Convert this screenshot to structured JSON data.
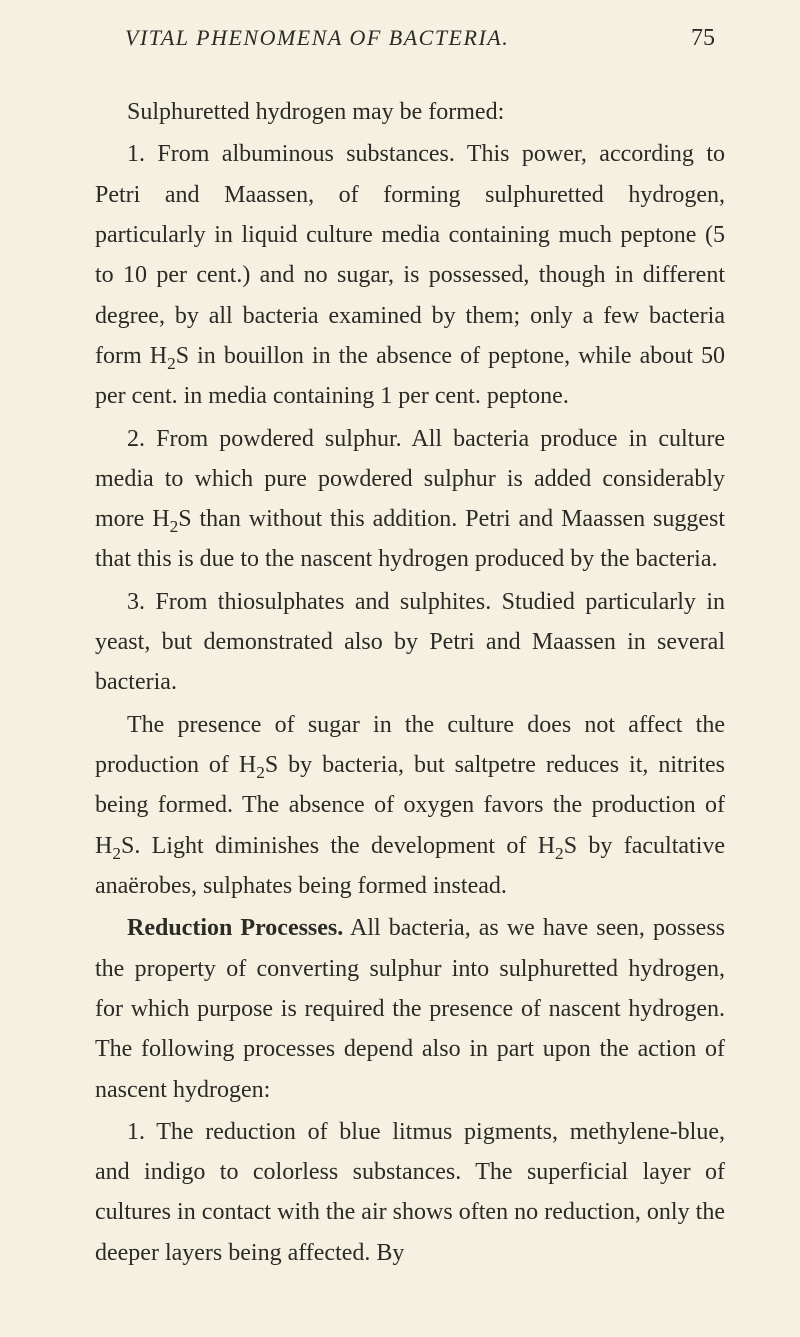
{
  "header": {
    "running_title": "VITAL PHENOMENA OF BACTERIA.",
    "page_number": "75"
  },
  "text": {
    "p1": "Sulphuretted hydrogen may be formed:",
    "p2_a": "1. From albuminous substances. This power, according to Petri and Maassen, of forming sulphuretted hydrogen, particularly in liquid culture media containing much peptone (5 to 10 per cent.) and no sugar, is possessed, though in different degree, by all bacteria examined by them; only a few bacteria form H",
    "p2_b": "S in bouillon in the absence of peptone, while about 50 per cent. in media containing 1 per cent. peptone.",
    "p3_a": "2. From powdered sulphur. All bacteria produce in culture media to which pure powdered sulphur is added considerably more H",
    "p3_b": "S than without this addition. Petri and Maassen suggest that this is due to the nascent hydrogen produced by the bacteria.",
    "p4": "3. From thiosulphates and sulphites. Studied particularly in yeast, but demonstrated also by Petri and Maassen in several bacteria.",
    "p5_a": "The presence of sugar in the culture does not affect the production of H",
    "p5_b": "S by bacteria, but saltpetre reduces it, nitrites being formed. The absence of oxygen favors the production of H",
    "p5_c": "S. Light diminishes the development of H",
    "p5_d": "S by facultative anaërobes, sulphates being formed instead.",
    "p6_heading": "Reduction Processes.",
    "p6": " All bacteria, as we have seen, possess the property of converting sulphur into sulphuretted hydrogen, for which purpose is required the presence of nascent hydrogen. The following processes depend also in part upon the action of nascent hydrogen:",
    "p7": "1. The reduction of blue litmus pigments, methylene-blue, and indigo to colorless substances. The superficial layer of cultures in contact with the air shows often no reduction, only the deeper layers being affected. By",
    "sub2": "2"
  }
}
